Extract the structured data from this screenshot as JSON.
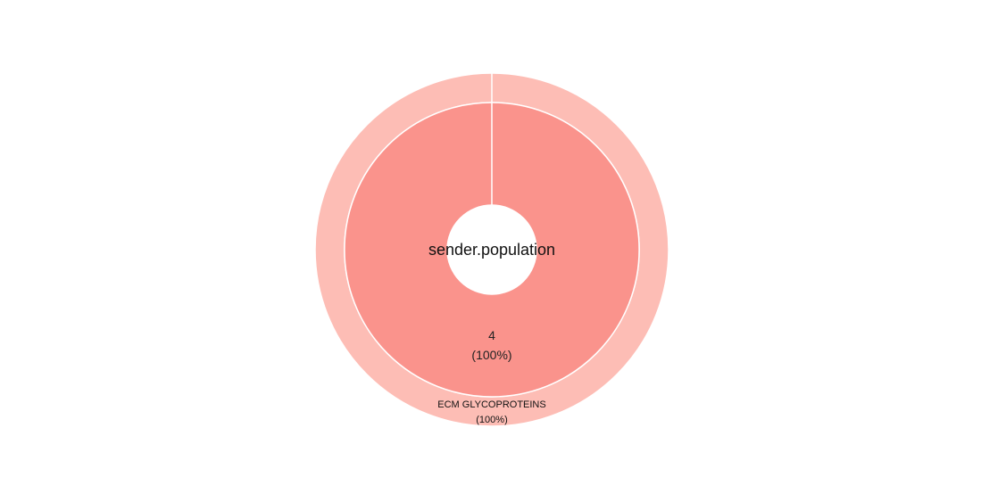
{
  "chart_data": {
    "type": "pie",
    "subtype": "sunburst",
    "center_label": "sender.population",
    "inner_ring": {
      "slices": [
        {
          "value": 4,
          "value_label": "4",
          "percent_label": "(100%)",
          "color": "#fa938c"
        }
      ]
    },
    "outer_ring": {
      "slices": [
        {
          "label": "ECM GLYCOPROTEINS",
          "percent_label": "(100%)",
          "value": 4,
          "color": "#fdbdb5"
        }
      ]
    },
    "separator_color": "#ffffff"
  }
}
